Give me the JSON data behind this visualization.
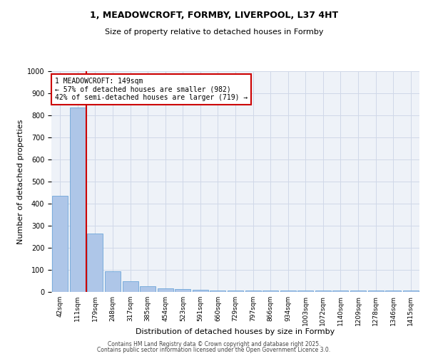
{
  "title_line1": "1, MEADOWCROFT, FORMBY, LIVERPOOL, L37 4HT",
  "title_line2": "Size of property relative to detached houses in Formby",
  "xlabel": "Distribution of detached houses by size in Formby",
  "ylabel": "Number of detached properties",
  "categories": [
    "42sqm",
    "111sqm",
    "179sqm",
    "248sqm",
    "317sqm",
    "385sqm",
    "454sqm",
    "523sqm",
    "591sqm",
    "660sqm",
    "729sqm",
    "797sqm",
    "866sqm",
    "934sqm",
    "1003sqm",
    "1072sqm",
    "1140sqm",
    "1209sqm",
    "1278sqm",
    "1346sqm",
    "1415sqm"
  ],
  "bar_heights": [
    437,
    835,
    265,
    95,
    48,
    25,
    17,
    12,
    10,
    5,
    5,
    5,
    5,
    5,
    5,
    5,
    5,
    5,
    5,
    5,
    5
  ],
  "bar_color": "#aec6e8",
  "bar_edge_color": "#5b9bd5",
  "grid_color": "#d0d8e8",
  "background_color": "#eef2f8",
  "vline_x": 1.5,
  "vline_color": "#cc0000",
  "annotation_text": "1 MEADOWCROFT: 149sqm\n← 57% of detached houses are smaller (982)\n42% of semi-detached houses are larger (719) →",
  "annotation_box_color": "#cc0000",
  "ylim": [
    0,
    1000
  ],
  "yticks": [
    0,
    100,
    200,
    300,
    400,
    500,
    600,
    700,
    800,
    900,
    1000
  ],
  "footer_line1": "Contains HM Land Registry data © Crown copyright and database right 2025.",
  "footer_line2": "Contains public sector information licensed under the Open Government Licence 3.0."
}
